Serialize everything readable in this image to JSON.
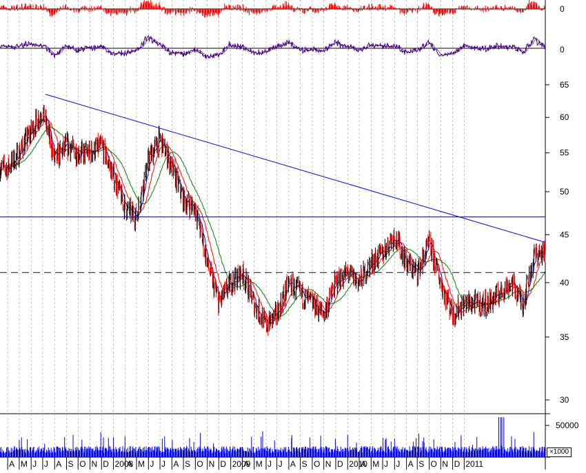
{
  "chart_data": {
    "type": "line",
    "panels": {
      "oscillator_1": {
        "zero_label": "0",
        "color": "#ff0000"
      },
      "oscillator_2": {
        "zero_label": "0",
        "color": "#4b0082",
        "signal_color": "#6a5acd"
      },
      "price": {
        "y_ticks": [
          "65",
          "60",
          "55",
          "50",
          "45",
          "40",
          "35",
          "30"
        ],
        "ylim": [
          29,
          67
        ],
        "scale": "log",
        "candle_up_color": "#000000",
        "candle_down_color": "#ff0000",
        "moving_average_colors": [
          "#0000cd",
          "#ff0000",
          "#008000"
        ],
        "horizontal_support": 47.0,
        "horizontal_dashed": 41.0,
        "trendline": {
          "start": [
            "2007-07-08",
            63.5
          ],
          "end": [
            "2011-01-24",
            44.2
          ]
        }
      },
      "volume": {
        "y_tick": "50000",
        "unit": "×1000",
        "color": "#0000ff"
      }
    },
    "x_axis": {
      "month_labels": [
        "A",
        "M",
        "J",
        "J",
        "A",
        "S",
        "O",
        "N",
        "D",
        "2008",
        "A",
        "M",
        "J",
        "J",
        "A",
        "S",
        "O",
        "N",
        "D",
        "2009",
        "A",
        "M",
        "J",
        "J",
        "A",
        "S",
        "O",
        "N",
        "D",
        "2010",
        "A",
        "M",
        "J",
        "J",
        "A",
        "S",
        "O",
        "N",
        "D",
        "2011"
      ],
      "start": "2007-04",
      "end": "2011-01"
    },
    "close_series": {
      "dates": [
        "2007-04-01",
        "2007-05-01",
        "2007-06-01",
        "2007-07-01",
        "2007-08-01",
        "2007-09-01",
        "2007-10-01",
        "2007-11-01",
        "2007-12-01",
        "2008-01-01",
        "2008-02-01",
        "2008-03-01",
        "2008-04-01",
        "2008-05-01",
        "2008-06-01",
        "2008-07-01",
        "2008-08-01",
        "2008-09-01",
        "2008-10-01",
        "2008-11-01",
        "2008-12-01",
        "2009-01-01",
        "2009-02-01",
        "2009-03-01",
        "2009-04-01",
        "2009-05-01",
        "2009-06-01",
        "2009-07-01",
        "2009-08-01",
        "2009-09-01",
        "2009-10-01",
        "2009-11-01",
        "2009-12-01",
        "2010-01-01",
        "2010-02-01",
        "2010-03-01",
        "2010-04-01",
        "2010-05-01",
        "2010-06-01",
        "2010-07-01",
        "2010-08-01",
        "2010-09-01",
        "2010-10-01",
        "2010-11-01",
        "2010-12-01",
        "2011-01-01"
      ],
      "values": [
        53,
        55,
        58,
        61,
        54,
        56,
        55,
        55,
        56,
        52,
        48,
        47,
        54,
        57,
        53,
        49,
        48,
        42,
        38,
        40,
        41,
        38,
        36,
        37,
        40,
        39,
        38,
        37,
        40,
        41,
        40,
        42,
        43,
        45,
        42,
        41,
        44,
        40,
        37,
        38,
        38,
        38,
        39,
        40,
        38,
        43
      ]
    }
  }
}
